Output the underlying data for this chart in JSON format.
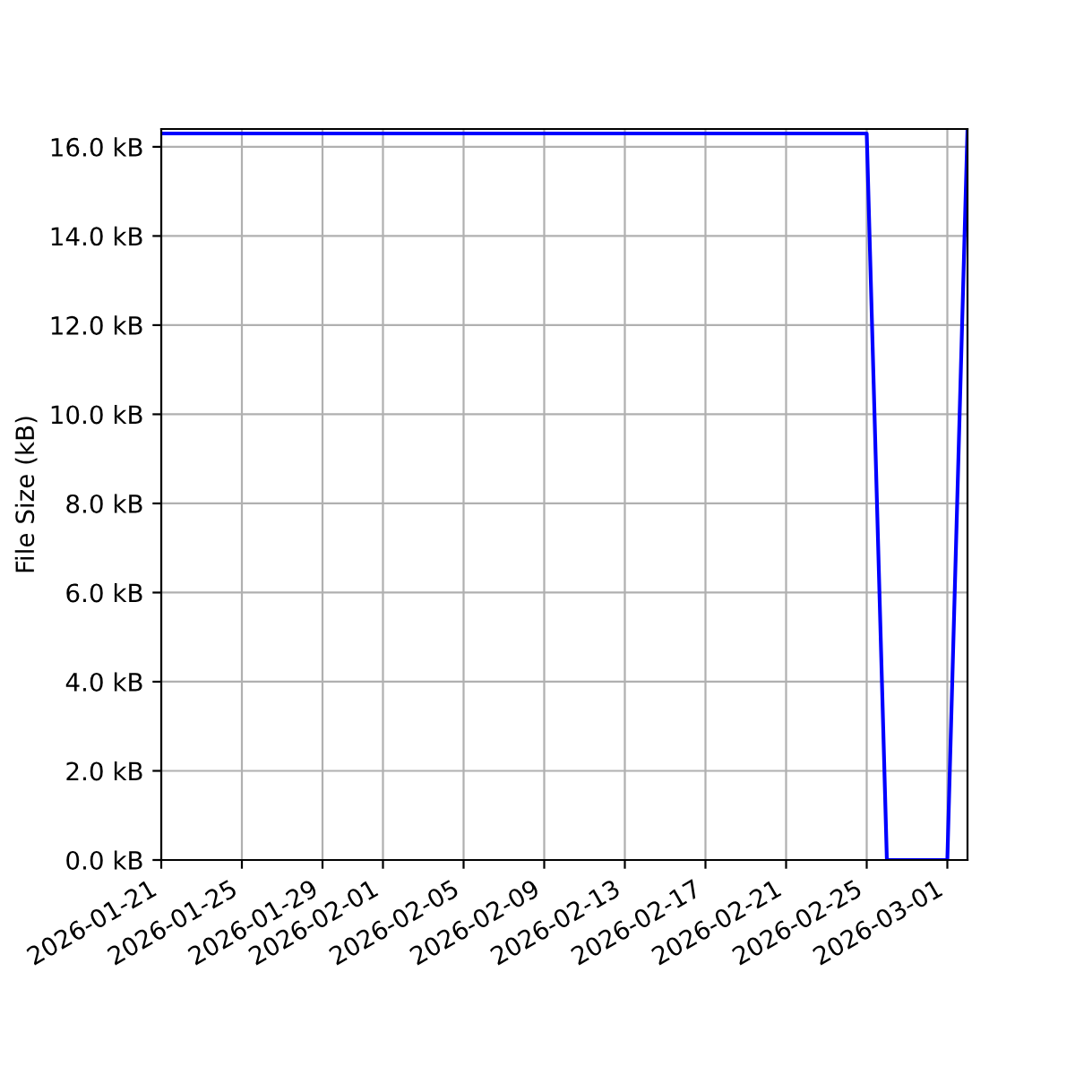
{
  "chart_data": {
    "type": "line",
    "ylabel": "File Size (kB)",
    "x": [
      "2026-01-21",
      "2026-02-25",
      "2026-02-26",
      "2026-03-01",
      "2026-03-02"
    ],
    "series": [
      {
        "color": "#0000ff",
        "values": [
          16.3,
          16.3,
          0,
          0,
          16.4
        ]
      }
    ],
    "xlim": [
      "2026-01-21",
      "2026-03-02"
    ],
    "xticks": [
      "2026-01-21",
      "2026-01-25",
      "2026-01-29",
      "2026-02-01",
      "2026-02-05",
      "2026-02-09",
      "2026-02-13",
      "2026-02-17",
      "2026-02-21",
      "2026-02-25",
      "2026-03-01"
    ],
    "ylim": [
      0,
      16.4
    ],
    "yticks": [
      {
        "value": 0,
        "label": "0.0 kB"
      },
      {
        "value": 2,
        "label": "2.0 kB"
      },
      {
        "value": 4,
        "label": "4.0 kB"
      },
      {
        "value": 6,
        "label": "6.0 kB"
      },
      {
        "value": 8,
        "label": "8.0 kB"
      },
      {
        "value": 10,
        "label": "10.0 kB"
      },
      {
        "value": 12,
        "label": "12.0 kB"
      },
      {
        "value": 14,
        "label": "14.0 kB"
      },
      {
        "value": 16,
        "label": "16.0 kB"
      }
    ],
    "grid": true,
    "line_style": "solid"
  }
}
